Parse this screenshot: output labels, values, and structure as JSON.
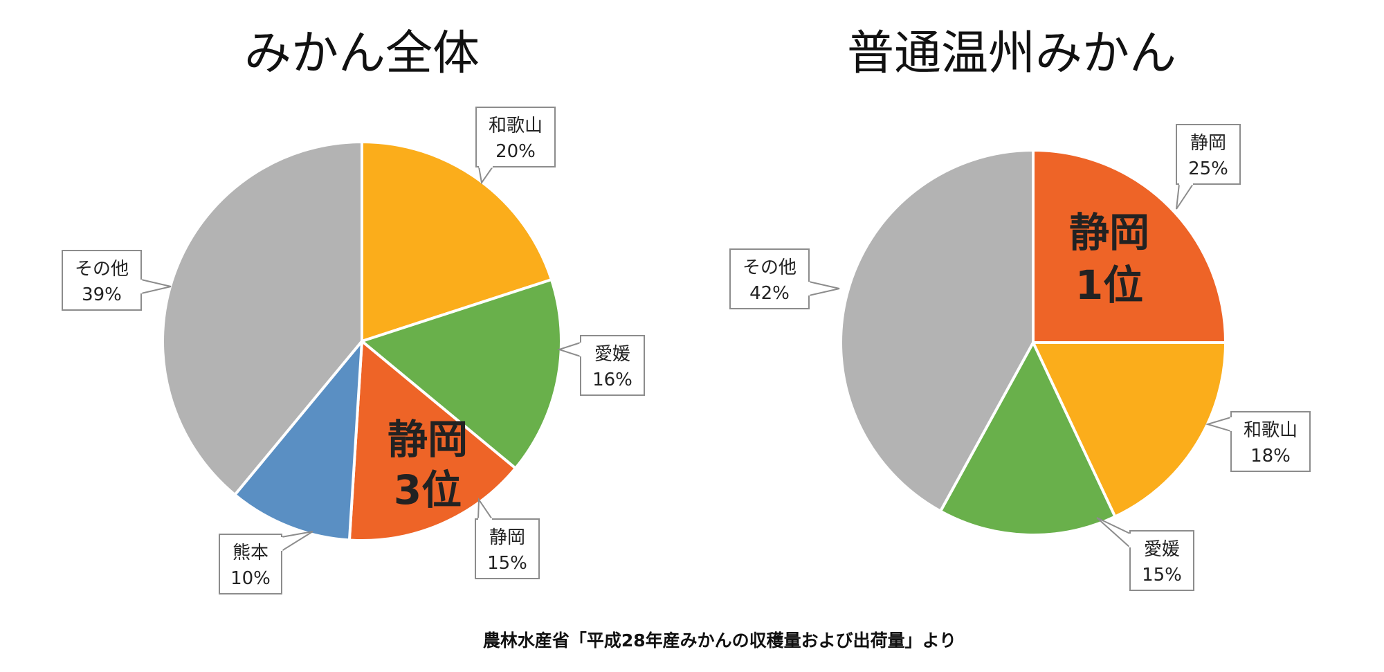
{
  "source_note": "農林水産省「平成28年産みかんの収穫量および出荷量」より",
  "colors": {
    "orange": "#ee6427",
    "yellow": "#fbad1b",
    "green": "#69b04b",
    "blue": "#5a8fc3",
    "gray": "#b3b3b3"
  },
  "chart_data": [
    {
      "type": "pie",
      "title": "みかん全体",
      "highlight": {
        "line1": "静岡",
        "line2": "3位"
      },
      "slices": [
        {
          "label": "和歌山",
          "value": 20,
          "pct_label": "20%",
          "color": "#fbad1b"
        },
        {
          "label": "愛媛",
          "value": 16,
          "pct_label": "16%",
          "color": "#69b04b"
        },
        {
          "label": "静岡",
          "value": 15,
          "pct_label": "15%",
          "color": "#ee6427"
        },
        {
          "label": "熊本",
          "value": 10,
          "pct_label": "10%",
          "color": "#5a8fc3"
        },
        {
          "label": "その他",
          "value": 39,
          "pct_label": "39%",
          "color": "#b3b3b3"
        }
      ]
    },
    {
      "type": "pie",
      "title": "普通温州みかん",
      "highlight": {
        "line1": "静岡",
        "line2": "1位"
      },
      "slices": [
        {
          "label": "静岡",
          "value": 25,
          "pct_label": "25%",
          "color": "#ee6427"
        },
        {
          "label": "和歌山",
          "value": 18,
          "pct_label": "18%",
          "color": "#fbad1b"
        },
        {
          "label": "愛媛",
          "value": 15,
          "pct_label": "15%",
          "color": "#69b04b"
        },
        {
          "label": "その他",
          "value": 42,
          "pct_label": "42%",
          "color": "#b3b3b3"
        }
      ]
    }
  ]
}
